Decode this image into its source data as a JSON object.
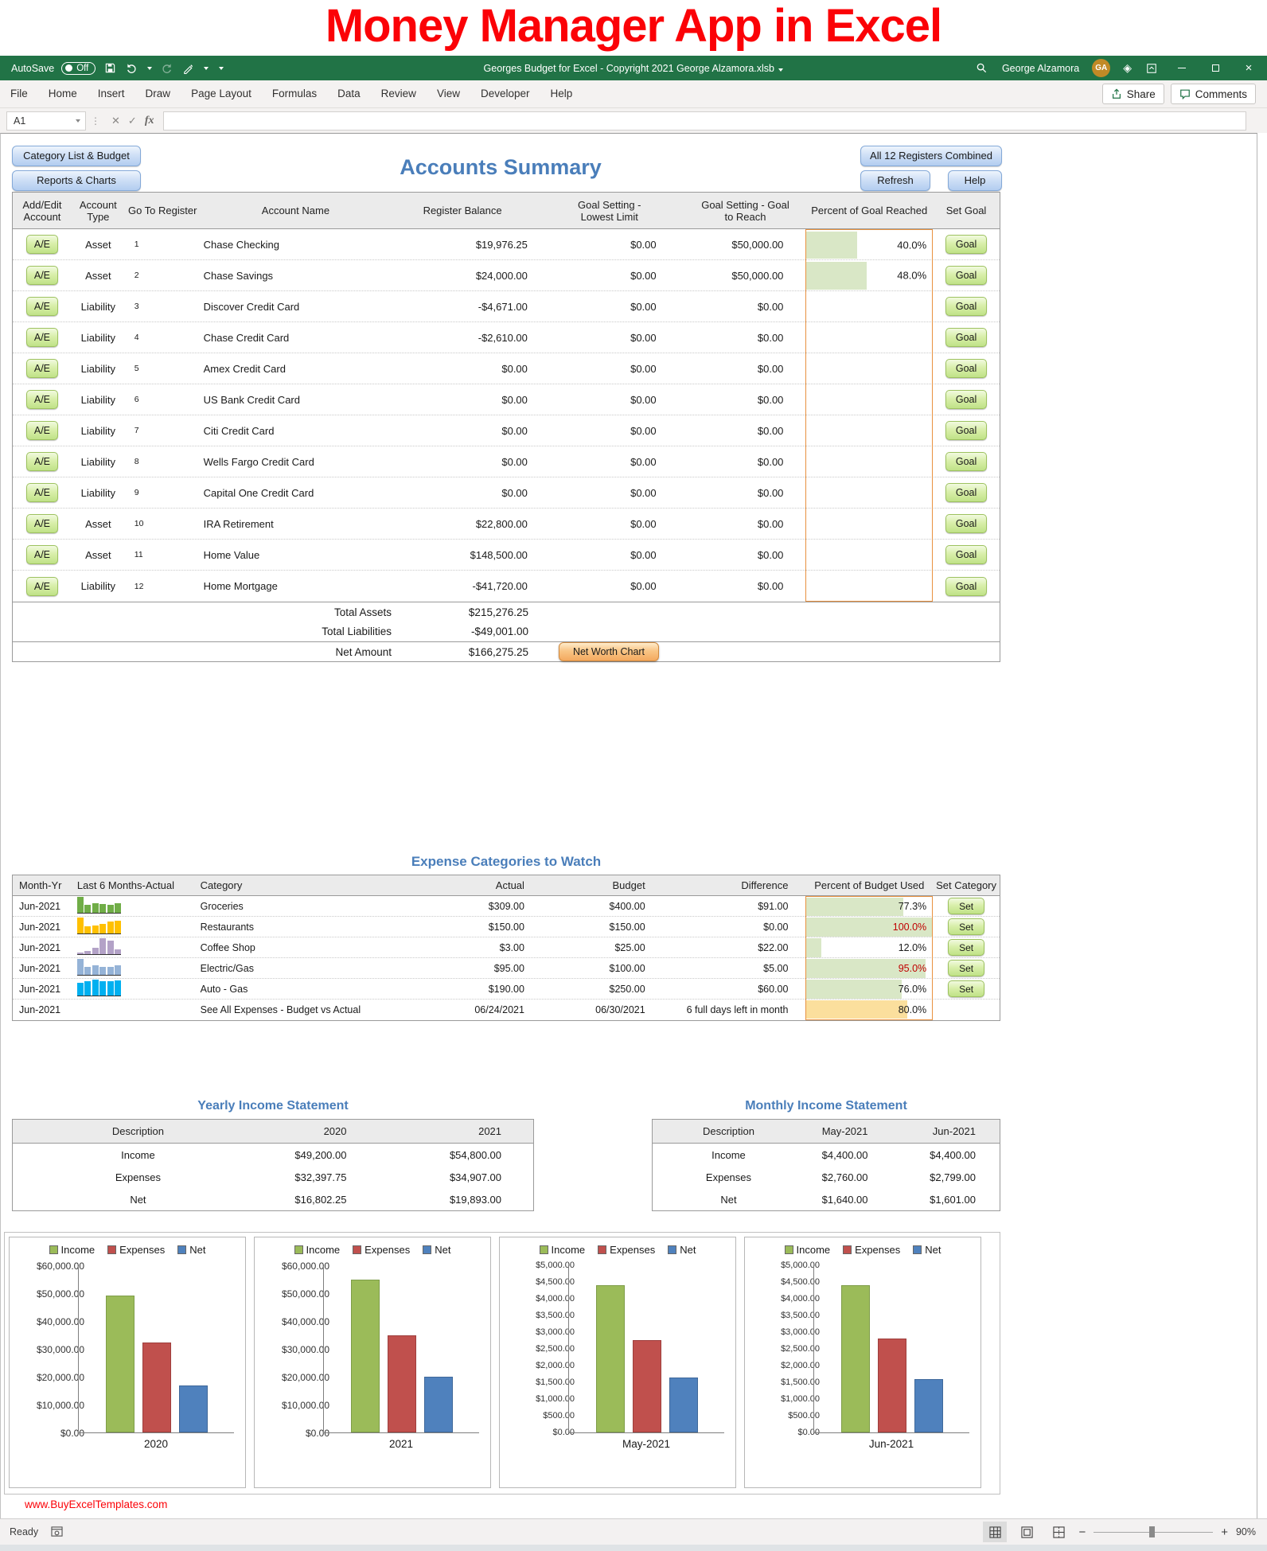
{
  "page_title": "Money Manager App in Excel",
  "titlebar": {
    "autosave_label": "AutoSave",
    "autosave_state": "Off",
    "document_title": "Georges Budget for Excel - Copyright 2021 George Alzamora.xlsb",
    "user_name": "George Alzamora",
    "user_initials": "GA"
  },
  "ribbon": {
    "tabs": [
      "File",
      "Home",
      "Insert",
      "Draw",
      "Page Layout",
      "Formulas",
      "Data",
      "Review",
      "View",
      "Developer",
      "Help"
    ],
    "share_label": "Share",
    "comments_label": "Comments"
  },
  "formula_bar": {
    "cell_reference": "A1",
    "cancel_glyph": "✕",
    "enter_glyph": "✓",
    "fx_label": "fx"
  },
  "toolbar": {
    "category_list_label": "Category List & Budget",
    "reports_charts_label": "Reports & Charts",
    "all_registers_label": "All 12 Registers Combined",
    "refresh_label": "Refresh",
    "help_label": "Help"
  },
  "accounts": {
    "title": "Accounts Summary",
    "headers": {
      "add_edit": "Add/Edit Account",
      "type": "Account Type",
      "goto": "Go To Register",
      "name": "Account Name",
      "balance": "Register Balance",
      "lowest": "Goal Setting - Lowest Limit",
      "goal": "Goal Setting - Goal to Reach",
      "percent": "Percent of Goal Reached",
      "set": "Set Goal"
    },
    "ae_label": "A/E",
    "goal_button_label": "Goal",
    "rows": [
      {
        "ae": "A/E",
        "type": "Asset",
        "num": "1",
        "name": "Chase Checking",
        "balance": "$19,976.25",
        "lowest": "$0.00",
        "goal": "$50,000.00",
        "percent": "40.0%",
        "percent_value": 40
      },
      {
        "ae": "A/E",
        "type": "Asset",
        "num": "2",
        "name": "Chase Savings",
        "balance": "$24,000.00",
        "lowest": "$0.00",
        "goal": "$50,000.00",
        "percent": "48.0%",
        "percent_value": 48
      },
      {
        "ae": "A/E",
        "type": "Liability",
        "num": "3",
        "name": "Discover Credit Card",
        "balance": "-$4,671.00",
        "lowest": "$0.00",
        "goal": "$0.00",
        "percent": "",
        "percent_value": 0
      },
      {
        "ae": "A/E",
        "type": "Liability",
        "num": "4",
        "name": "Chase Credit Card",
        "balance": "-$2,610.00",
        "lowest": "$0.00",
        "goal": "$0.00",
        "percent": "",
        "percent_value": 0
      },
      {
        "ae": "A/E",
        "type": "Liability",
        "num": "5",
        "name": "Amex Credit Card",
        "balance": "$0.00",
        "lowest": "$0.00",
        "goal": "$0.00",
        "percent": "",
        "percent_value": 0
      },
      {
        "ae": "A/E",
        "type": "Liability",
        "num": "6",
        "name": "US Bank Credit Card",
        "balance": "$0.00",
        "lowest": "$0.00",
        "goal": "$0.00",
        "percent": "",
        "percent_value": 0
      },
      {
        "ae": "A/E",
        "type": "Liability",
        "num": "7",
        "name": "Citi Credit Card",
        "balance": "$0.00",
        "lowest": "$0.00",
        "goal": "$0.00",
        "percent": "",
        "percent_value": 0
      },
      {
        "ae": "A/E",
        "type": "Liability",
        "num": "8",
        "name": "Wells Fargo Credit Card",
        "balance": "$0.00",
        "lowest": "$0.00",
        "goal": "$0.00",
        "percent": "",
        "percent_value": 0
      },
      {
        "ae": "A/E",
        "type": "Liability",
        "num": "9",
        "name": "Capital One Credit Card",
        "balance": "$0.00",
        "lowest": "$0.00",
        "goal": "$0.00",
        "percent": "",
        "percent_value": 0
      },
      {
        "ae": "A/E",
        "type": "Asset",
        "num": "10",
        "name": "IRA Retirement",
        "balance": "$22,800.00",
        "lowest": "$0.00",
        "goal": "$0.00",
        "percent": "",
        "percent_value": 0
      },
      {
        "ae": "A/E",
        "type": "Asset",
        "num": "11",
        "name": "Home Value",
        "balance": "$148,500.00",
        "lowest": "$0.00",
        "goal": "$0.00",
        "percent": "",
        "percent_value": 0
      },
      {
        "ae": "A/E",
        "type": "Liability",
        "num": "12",
        "name": "Home Mortgage",
        "balance": "-$41,720.00",
        "lowest": "$0.00",
        "goal": "$0.00",
        "percent": "",
        "percent_value": 0
      }
    ],
    "totals": [
      {
        "label": "Total Assets",
        "value": "$215,276.25"
      },
      {
        "label": "Total Liabilities",
        "value": "-$49,001.00"
      },
      {
        "label": "Net Amount",
        "value": "$166,275.25"
      }
    ],
    "net_worth_button_label": "Net Worth Chart"
  },
  "expenses": {
    "title": "Expense Categories to Watch",
    "headers": {
      "month": "Month-Yr",
      "spark": "Last 6 Months-Actual",
      "category": "Category",
      "actual": "Actual",
      "budget": "Budget",
      "difference": "Difference",
      "percent": "Percent of Budget Used",
      "set": "Set Category"
    },
    "rows": [
      {
        "month": "Jun-2021",
        "category": "Groceries",
        "actual": "$309.00",
        "budget": "$400.00",
        "difference": "$91.00",
        "percent": "77.3%",
        "percent_value": 77.3,
        "percent_red": false,
        "bar": "green",
        "set_label": "Set",
        "spark_color": "#70ad47",
        "spark": [
          100,
          52,
          58,
          56,
          52,
          62
        ]
      },
      {
        "month": "Jun-2021",
        "category": "Restaurants",
        "actual": "$150.00",
        "budget": "$150.00",
        "difference": "$0.00",
        "percent": "100.0%",
        "percent_value": 100,
        "percent_red": true,
        "bar": "green",
        "set_label": "Set",
        "spark_color": "#ffc000",
        "spark": [
          100,
          45,
          52,
          58,
          75,
          80
        ]
      },
      {
        "month": "Jun-2021",
        "category": "Coffee Shop",
        "actual": "$3.00",
        "budget": "$25.00",
        "difference": "$22.00",
        "percent": "12.0%",
        "percent_value": 12,
        "percent_red": false,
        "bar": "green",
        "set_label": "Set",
        "spark_color": "#b3a2c7",
        "spark": [
          12,
          22,
          42,
          100,
          85,
          28
        ]
      },
      {
        "month": "Jun-2021",
        "category": "Electric/Gas",
        "actual": "$95.00",
        "budget": "$100.00",
        "difference": "$5.00",
        "percent": "95.0%",
        "percent_value": 95,
        "percent_red": true,
        "bar": "green",
        "set_label": "Set",
        "spark_color": "#95b3d7",
        "spark": [
          100,
          50,
          58,
          52,
          48,
          62
        ]
      },
      {
        "month": "Jun-2021",
        "category": "Auto - Gas",
        "actual": "$190.00",
        "budget": "$250.00",
        "difference": "$60.00",
        "percent": "76.0%",
        "percent_value": 76,
        "percent_red": false,
        "bar": "green",
        "set_label": "Set",
        "spark_color": "#00b0f0",
        "spark": [
          82,
          88,
          100,
          92,
          88,
          95
        ]
      },
      {
        "month": "Jun-2021",
        "category": "See All Expenses - Budget vs Actual",
        "actual": "06/24/2021",
        "budget": "06/30/2021",
        "difference": "6 full days left in month",
        "percent": "80.0%",
        "percent_value": 80,
        "percent_red": false,
        "bar": "yellow",
        "set_label": "",
        "spark_color": "",
        "spark": []
      }
    ]
  },
  "income_statements": {
    "yearly": {
      "title": "Yearly Income Statement",
      "headers": [
        "Description",
        "2020",
        "2021"
      ],
      "rows": [
        [
          "Income",
          "$49,200.00",
          "$54,800.00"
        ],
        [
          "Expenses",
          "$32,397.75",
          "$34,907.00"
        ],
        [
          "Net",
          "$16,802.25",
          "$19,893.00"
        ]
      ]
    },
    "monthly": {
      "title": "Monthly Income Statement",
      "headers": [
        "Description",
        "May-2021",
        "Jun-2021"
      ],
      "rows": [
        [
          "Income",
          "$4,400.00",
          "$4,400.00"
        ],
        [
          "Expenses",
          "$2,760.00",
          "$2,799.00"
        ],
        [
          "Net",
          "$1,640.00",
          "$1,601.00"
        ]
      ]
    }
  },
  "chart_data": [
    {
      "type": "bar",
      "title": "",
      "xlabel": "2020",
      "ylabel": "",
      "categories": [
        "Income",
        "Expenses",
        "Net"
      ],
      "values": [
        49200,
        32397.75,
        16802.25
      ],
      "colors": [
        "#9bbb59",
        "#c0504d",
        "#4f81bd"
      ],
      "border_colors": [
        "#7e9d48",
        "#9e3f3d",
        "#3f689a"
      ],
      "legend": [
        "Income",
        "Expenses",
        "Net"
      ],
      "legend_position": "top",
      "grid": false,
      "ylim": [
        0,
        60000
      ],
      "ytick_labels": [
        "$60,000.00",
        "$50,000.00",
        "$40,000.00",
        "$30,000.00",
        "$20,000.00",
        "$10,000.00",
        "$0.00"
      ]
    },
    {
      "type": "bar",
      "title": "",
      "xlabel": "2021",
      "ylabel": "",
      "categories": [
        "Income",
        "Expenses",
        "Net"
      ],
      "values": [
        54800,
        34907,
        19893
      ],
      "colors": [
        "#9bbb59",
        "#c0504d",
        "#4f81bd"
      ],
      "border_colors": [
        "#7e9d48",
        "#9e3f3d",
        "#3f689a"
      ],
      "legend": [
        "Income",
        "Expenses",
        "Net"
      ],
      "legend_position": "top",
      "grid": false,
      "ylim": [
        0,
        60000
      ],
      "ytick_labels": [
        "$60,000.00",
        "$50,000.00",
        "$40,000.00",
        "$30,000.00",
        "$20,000.00",
        "$10,000.00",
        "$0.00"
      ]
    },
    {
      "type": "bar",
      "title": "",
      "xlabel": "May-2021",
      "ylabel": "",
      "categories": [
        "Income",
        "Expenses",
        "Net"
      ],
      "values": [
        4400,
        2760,
        1640
      ],
      "colors": [
        "#9bbb59",
        "#c0504d",
        "#4f81bd"
      ],
      "border_colors": [
        "#7e9d48",
        "#9e3f3d",
        "#3f689a"
      ],
      "legend": [
        "Income",
        "Expenses",
        "Net"
      ],
      "legend_position": "top",
      "grid": false,
      "ylim": [
        0,
        5000
      ],
      "ytick_labels": [
        "$5,000.00",
        "$4,500.00",
        "$4,000.00",
        "$3,500.00",
        "$3,000.00",
        "$2,500.00",
        "$2,000.00",
        "$1,500.00",
        "$1,000.00",
        "$500.00",
        "$0.00"
      ]
    },
    {
      "type": "bar",
      "title": "",
      "xlabel": "Jun-2021",
      "ylabel": "",
      "categories": [
        "Income",
        "Expenses",
        "Net"
      ],
      "values": [
        4400,
        2799,
        1601
      ],
      "colors": [
        "#9bbb59",
        "#c0504d",
        "#4f81bd"
      ],
      "border_colors": [
        "#7e9d48",
        "#9e3f3d",
        "#3f689a"
      ],
      "legend": [
        "Income",
        "Expenses",
        "Net"
      ],
      "legend_position": "top",
      "grid": false,
      "ylim": [
        0,
        5000
      ],
      "ytick_labels": [
        "$5,000.00",
        "$4,500.00",
        "$4,000.00",
        "$3,500.00",
        "$3,000.00",
        "$2,500.00",
        "$2,000.00",
        "$1,500.00",
        "$1,000.00",
        "$500.00",
        "$0.00"
      ]
    }
  ],
  "footer": {
    "link": "www.BuyExcelTemplates.com"
  },
  "status_bar": {
    "ready": "Ready",
    "zoom_out": "−",
    "zoom_in": "+",
    "zoom_level": "90%"
  },
  "colors": {
    "excel_green": "#217346",
    "accent_blue": "#4a7eba",
    "databar_green": "#d9e7c6",
    "databar_yellow": "#fbdf9d",
    "databar_border_orange": "#e8913f",
    "alert_red": "#c00000"
  }
}
